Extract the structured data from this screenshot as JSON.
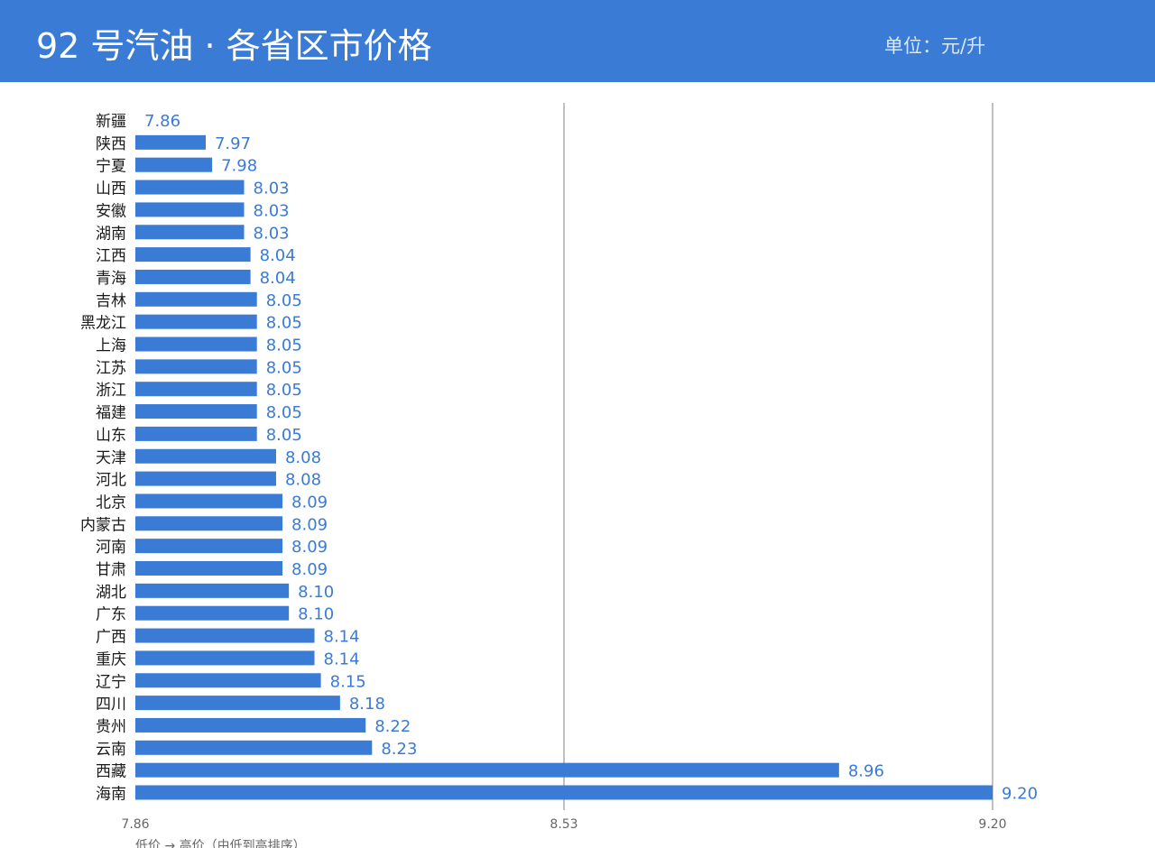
{
  "header": {
    "title": "92 号汽油 · 各省区市价格",
    "unit": "单位：元/升"
  },
  "colors": {
    "header_bg": "#3a7bd5",
    "bar": "#3a7bd5",
    "value_label": "#3a7bd5",
    "gridline": "#808080"
  },
  "chart_data": {
    "type": "bar",
    "orientation": "horizontal",
    "title": "92 号汽油 · 各省区市价格",
    "unit": "元/升",
    "xlabel": "低价 → 高价（由低到高排序）",
    "ylabel": "",
    "xlim": [
      7.86,
      9.2
    ],
    "xticks": [
      "7.86",
      "8.53",
      "9.20"
    ],
    "grid": true,
    "categories": [
      "新疆",
      "陕西",
      "宁夏",
      "山西",
      "安徽",
      "湖南",
      "江西",
      "青海",
      "吉林",
      "黑龙江",
      "上海",
      "江苏",
      "浙江",
      "福建",
      "山东",
      "天津",
      "河北",
      "北京",
      "内蒙古",
      "河南",
      "甘肃",
      "湖北",
      "广东",
      "广西",
      "重庆",
      "辽宁",
      "四川",
      "贵州",
      "云南",
      "西藏",
      "海南"
    ],
    "values": [
      7.86,
      7.97,
      7.98,
      8.03,
      8.03,
      8.03,
      8.04,
      8.04,
      8.05,
      8.05,
      8.05,
      8.05,
      8.05,
      8.05,
      8.05,
      8.08,
      8.08,
      8.09,
      8.09,
      8.09,
      8.09,
      8.1,
      8.1,
      8.14,
      8.14,
      8.15,
      8.18,
      8.22,
      8.23,
      8.96,
      9.2
    ],
    "value_labels": [
      "7.86",
      "7.97",
      "7.98",
      "8.03",
      "8.03",
      "8.03",
      "8.04",
      "8.04",
      "8.05",
      "8.05",
      "8.05",
      "8.05",
      "8.05",
      "8.05",
      "8.05",
      "8.08",
      "8.08",
      "8.09",
      "8.09",
      "8.09",
      "8.09",
      "8.10",
      "8.10",
      "8.14",
      "8.14",
      "8.15",
      "8.18",
      "8.22",
      "8.23",
      "8.96",
      "9.20"
    ]
  }
}
